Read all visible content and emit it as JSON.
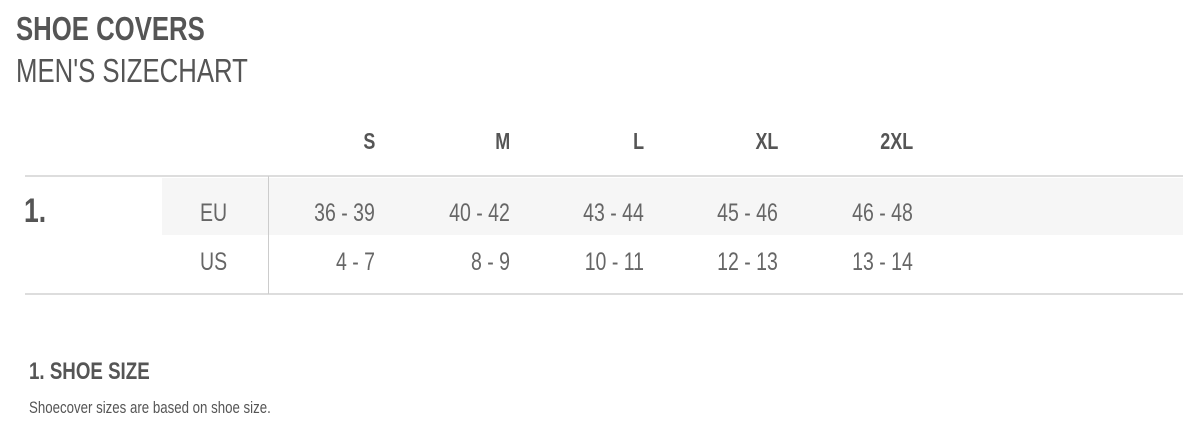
{
  "header": {
    "title": "SHOE COVERS",
    "subtitle": "MEN'S SIZECHART"
  },
  "table": {
    "section_number": "1.",
    "columns": [
      "S",
      "M",
      "L",
      "XL",
      "2XL"
    ],
    "rows": [
      {
        "label": "EU",
        "values": [
          "36 - 39",
          "40 - 42",
          "43 - 44",
          "45 - 46",
          "46 - 48"
        ]
      },
      {
        "label": "US",
        "values": [
          "4 - 7",
          "8 - 9",
          "10 - 11",
          "12 - 13",
          "13 - 14"
        ]
      }
    ]
  },
  "notes": {
    "title": "1. SHOE SIZE",
    "text": "Shoecover sizes are based on shoe size."
  }
}
